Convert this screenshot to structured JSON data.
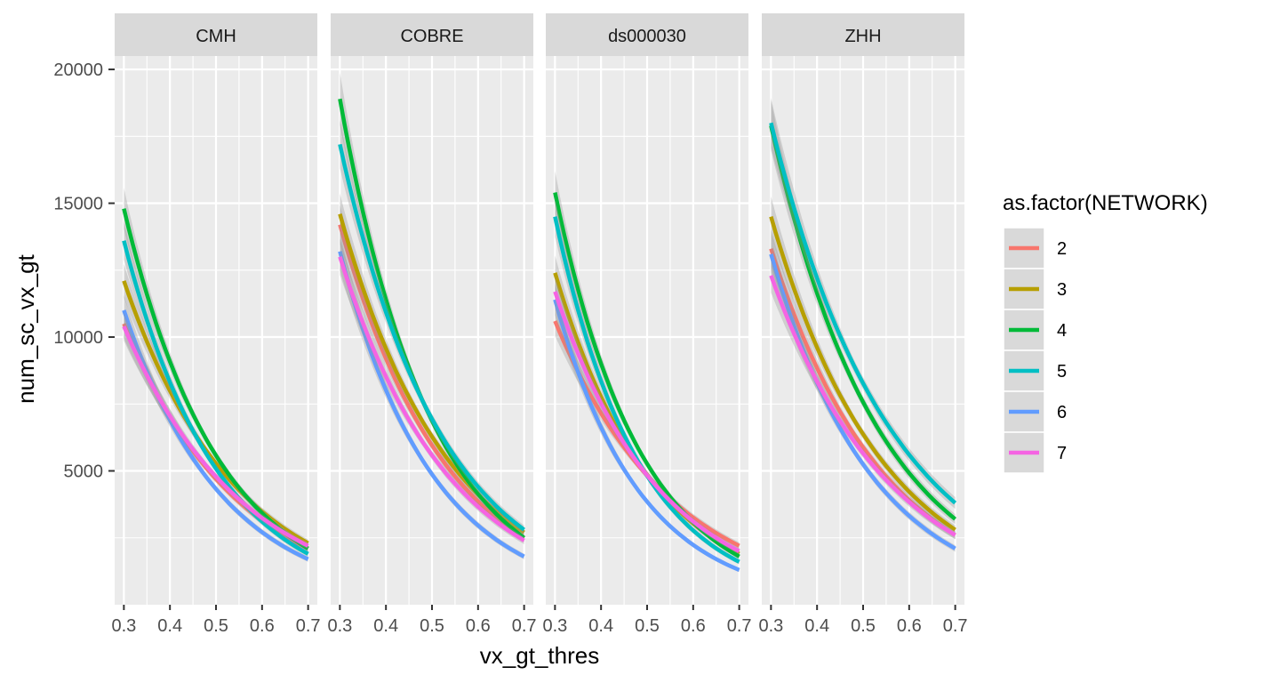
{
  "chart_data": {
    "type": "line",
    "facet_variable": "dataset",
    "facets": [
      "CMH",
      "COBRE",
      "ds000030",
      "ZHH"
    ],
    "xlabel": "vx_gt_thres",
    "ylabel": "num_sc_vx_gt",
    "x_ticks": [
      0.3,
      0.4,
      0.5,
      0.6,
      0.7
    ],
    "x_tick_labels": [
      "0.3",
      "0.4",
      "0.5",
      "0.6",
      "0.7"
    ],
    "xlim": [
      0.28,
      0.72
    ],
    "y_ticks": [
      5000,
      10000,
      15000,
      20000
    ],
    "y_tick_labels": [
      "5000",
      "10000",
      "15000",
      "20000"
    ],
    "ylim": [
      0,
      20500
    ],
    "legend": {
      "title": "as.factor(NETWORK)",
      "position": "right",
      "entries": [
        {
          "label": "2",
          "color": "#F8766D"
        },
        {
          "label": "3",
          "color": "#B79F00"
        },
        {
          "label": "4",
          "color": "#00BA38"
        },
        {
          "label": "5",
          "color": "#00BFC4"
        },
        {
          "label": "6",
          "color": "#619CFF"
        },
        {
          "label": "7",
          "color": "#F564E3"
        }
      ]
    },
    "x": [
      0.3,
      0.7
    ],
    "series_by_facet": {
      "CMH": [
        {
          "network": "2",
          "start": 10500,
          "end": 2100
        },
        {
          "network": "3",
          "start": 12100,
          "end": 2300
        },
        {
          "network": "4",
          "start": 14800,
          "end": 2100
        },
        {
          "network": "5",
          "start": 13600,
          "end": 1900
        },
        {
          "network": "6",
          "start": 11000,
          "end": 1700
        },
        {
          "network": "7",
          "start": 10400,
          "end": 2200
        }
      ],
      "COBRE": [
        {
          "network": "2",
          "start": 14200,
          "end": 2500
        },
        {
          "network": "3",
          "start": 14600,
          "end": 2700
        },
        {
          "network": "4",
          "start": 18900,
          "end": 2500
        },
        {
          "network": "5",
          "start": 17200,
          "end": 2800
        },
        {
          "network": "6",
          "start": 13200,
          "end": 1800
        },
        {
          "network": "7",
          "start": 13000,
          "end": 2400
        }
      ],
      "ds000030": [
        {
          "network": "2",
          "start": 10600,
          "end": 2200
        },
        {
          "network": "3",
          "start": 12400,
          "end": 1900
        },
        {
          "network": "4",
          "start": 15400,
          "end": 1800
        },
        {
          "network": "5",
          "start": 14500,
          "end": 1600
        },
        {
          "network": "6",
          "start": 11400,
          "end": 1300
        },
        {
          "network": "7",
          "start": 11700,
          "end": 2000
        }
      ],
      "ZHH": [
        {
          "network": "2",
          "start": 13300,
          "end": 2600
        },
        {
          "network": "3",
          "start": 14500,
          "end": 2800
        },
        {
          "network": "4",
          "start": 17900,
          "end": 3200
        },
        {
          "network": "5",
          "start": 18000,
          "end": 3800
        },
        {
          "network": "6",
          "start": 13100,
          "end": 2100
        },
        {
          "network": "7",
          "start": 12300,
          "end": 2600
        }
      ]
    },
    "confidence_band": true,
    "grid": true,
    "panel_background": "#EBEBEB",
    "strip_background": "#D9D9D9"
  }
}
